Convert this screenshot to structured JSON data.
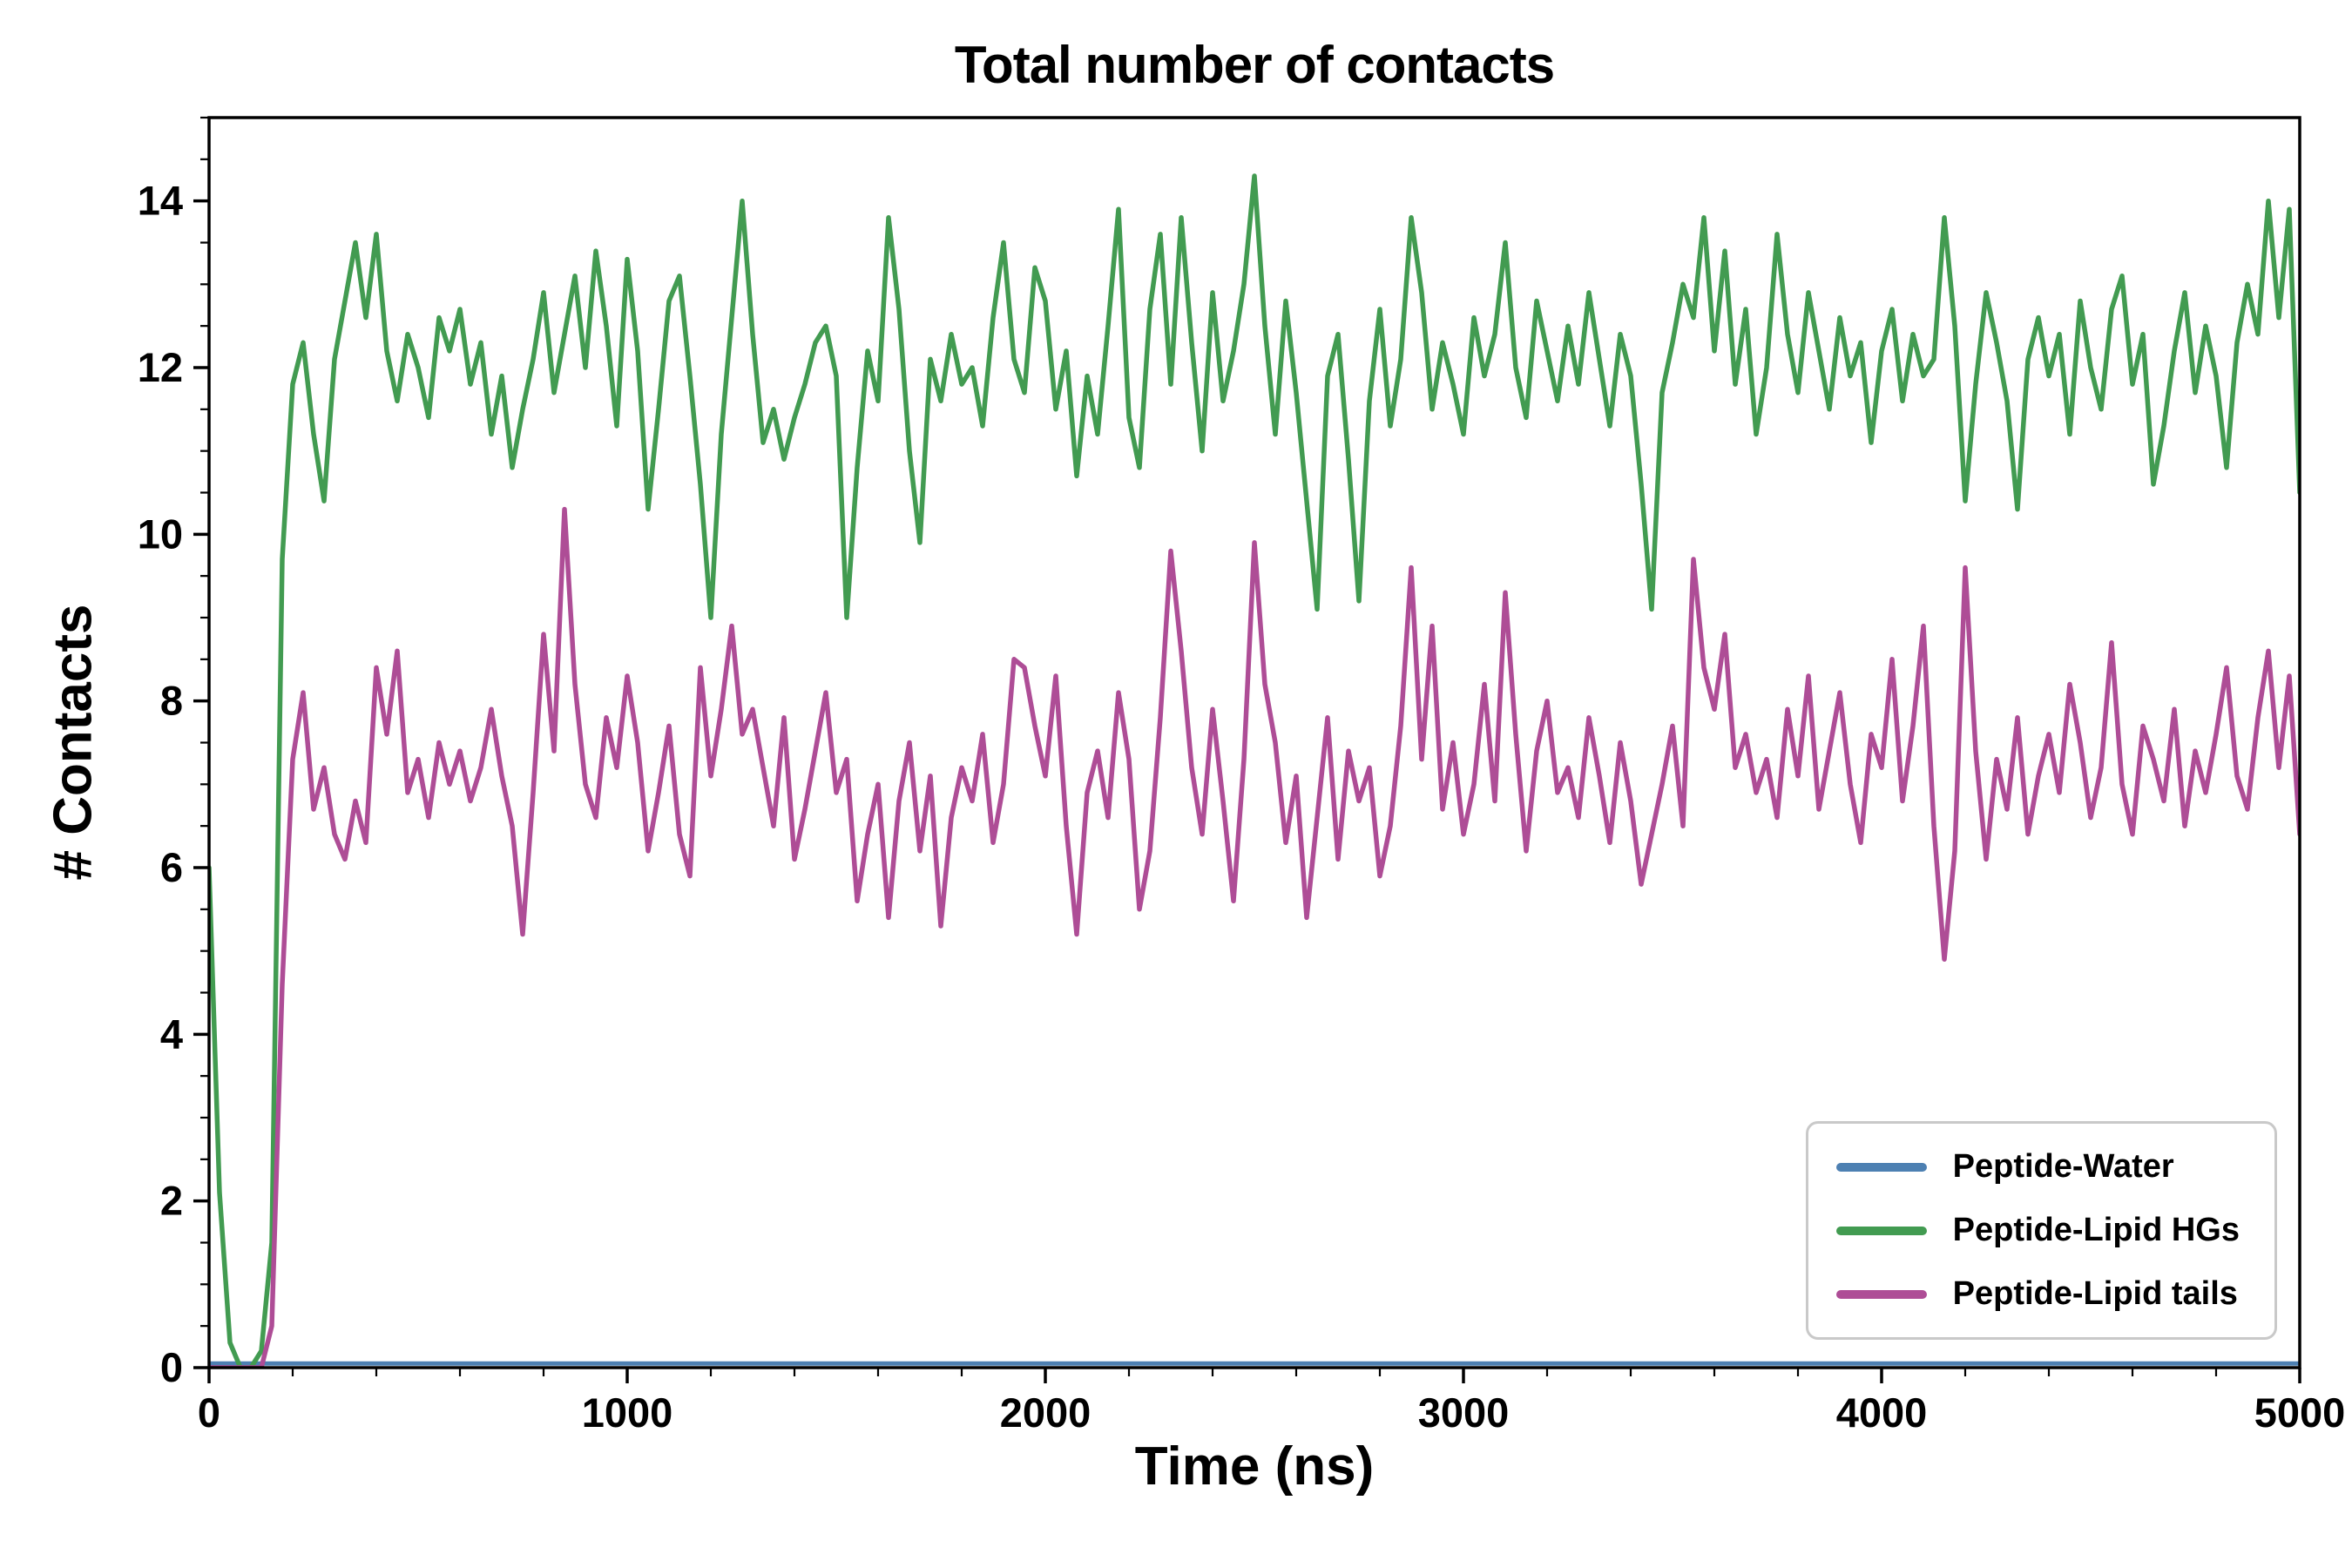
{
  "title": "Total number of contacts",
  "xlabel": "Time (ns)",
  "ylabel": "# Contacts",
  "legend": {
    "items": [
      {
        "label": "Peptide-Water",
        "color": "#4d80b2"
      },
      {
        "label": "Peptide-Lipid HGs",
        "color": "#429b51"
      },
      {
        "label": "Peptide-Lipid tails",
        "color": "#ae4d96"
      }
    ]
  },
  "chart_data": {
    "type": "line",
    "title": "Total number of contacts",
    "xlabel": "Time (ns)",
    "ylabel": "# Contacts",
    "xlim": [
      0,
      5000
    ],
    "ylim": [
      0,
      15
    ],
    "xticks": [
      0,
      1000,
      2000,
      3000,
      4000,
      5000
    ],
    "yticks": [
      0,
      2,
      4,
      6,
      8,
      10,
      12,
      14
    ],
    "x_minor_step": 200,
    "y_minor_step": 0.5,
    "grid": false,
    "legend_position": "lower right",
    "series": [
      {
        "name": "Peptide-Water",
        "color": "#4d80b2",
        "width": 5,
        "x": [
          0,
          5000
        ],
        "values": [
          0.05,
          0.05
        ]
      },
      {
        "name": "Peptide-Lipid HGs",
        "color": "#429b51",
        "width": 5.5,
        "x0": 0,
        "dx": 25,
        "values": [
          6.0,
          2.1,
          0.3,
          0.0,
          0.0,
          0.2,
          1.5,
          9.7,
          11.8,
          12.3,
          11.2,
          10.4,
          12.1,
          12.8,
          13.5,
          12.6,
          13.6,
          12.2,
          11.6,
          12.4,
          12.0,
          11.4,
          12.6,
          12.2,
          12.7,
          11.8,
          12.3,
          11.2,
          11.9,
          10.8,
          11.5,
          12.1,
          12.9,
          11.7,
          12.4,
          13.1,
          12.0,
          13.4,
          12.5,
          11.3,
          13.3,
          12.2,
          10.3,
          11.5,
          12.8,
          13.1,
          11.9,
          10.6,
          9.0,
          11.2,
          12.6,
          14.0,
          12.4,
          11.1,
          11.5,
          10.9,
          11.4,
          11.8,
          12.3,
          12.5,
          11.9,
          9.0,
          10.8,
          12.2,
          11.6,
          13.8,
          12.7,
          11.0,
          9.9,
          12.1,
          11.6,
          12.4,
          11.8,
          12.0,
          11.3,
          12.6,
          13.5,
          12.1,
          11.7,
          13.2,
          12.8,
          11.5,
          12.2,
          10.7,
          11.9,
          11.2,
          12.5,
          13.9,
          11.4,
          10.8,
          12.7,
          13.6,
          11.8,
          13.8,
          12.3,
          11.0,
          12.9,
          11.6,
          12.2,
          13.0,
          14.3,
          12.5,
          11.2,
          12.8,
          11.7,
          10.4,
          9.1,
          11.9,
          12.4,
          10.9,
          9.2,
          11.6,
          12.7,
          11.3,
          12.1,
          13.8,
          12.9,
          11.5,
          12.3,
          11.8,
          11.2,
          12.6,
          11.9,
          12.4,
          13.5,
          12.0,
          11.4,
          12.8,
          12.2,
          11.6,
          12.5,
          11.8,
          12.9,
          12.1,
          11.3,
          12.4,
          11.9,
          10.6,
          9.1,
          11.7,
          12.3,
          13.0,
          12.6,
          13.8,
          12.2,
          13.4,
          11.8,
          12.7,
          11.2,
          12.0,
          13.6,
          12.4,
          11.7,
          12.9,
          12.2,
          11.5,
          12.6,
          11.9,
          12.3,
          11.1,
          12.2,
          12.7,
          11.6,
          12.4,
          11.9,
          12.1,
          13.8,
          12.5,
          10.4,
          11.8,
          12.9,
          12.3,
          11.6,
          10.3,
          12.1,
          12.6,
          11.9,
          12.4,
          11.2,
          12.8,
          12.0,
          11.5,
          12.7,
          13.1,
          11.8,
          12.4,
          10.6,
          11.3,
          12.2,
          12.9,
          11.7,
          12.5,
          11.9,
          10.8,
          12.3,
          13.0,
          12.4,
          14.0,
          12.6,
          13.9,
          10.5
        ]
      },
      {
        "name": "Peptide-Lipid tails",
        "color": "#ae4d96",
        "width": 5.5,
        "x0": 0,
        "dx": 25,
        "values": [
          0.0,
          0.0,
          0.0,
          0.0,
          0.0,
          0.0,
          0.5,
          4.6,
          7.3,
          8.1,
          6.7,
          7.2,
          6.4,
          6.1,
          6.8,
          6.3,
          8.4,
          7.6,
          8.6,
          6.9,
          7.3,
          6.6,
          7.5,
          7.0,
          7.4,
          6.8,
          7.2,
          7.9,
          7.1,
          6.5,
          5.2,
          6.9,
          8.8,
          7.4,
          10.3,
          8.2,
          7.0,
          6.6,
          7.8,
          7.2,
          8.3,
          7.5,
          6.2,
          6.9,
          7.7,
          6.4,
          5.9,
          8.4,
          7.1,
          7.9,
          8.9,
          7.6,
          7.9,
          7.2,
          6.5,
          7.8,
          6.1,
          6.7,
          7.4,
          8.1,
          6.9,
          7.3,
          5.6,
          6.4,
          7.0,
          5.4,
          6.8,
          7.5,
          6.2,
          7.1,
          5.3,
          6.6,
          7.2,
          6.8,
          7.6,
          6.3,
          7.0,
          8.5,
          8.4,
          7.7,
          7.1,
          8.3,
          6.5,
          5.2,
          6.9,
          7.4,
          6.6,
          8.1,
          7.3,
          5.5,
          6.2,
          7.8,
          9.8,
          8.6,
          7.2,
          6.4,
          7.9,
          6.8,
          5.6,
          7.3,
          9.9,
          8.2,
          7.5,
          6.3,
          7.1,
          5.4,
          6.6,
          7.8,
          6.1,
          7.4,
          6.8,
          7.2,
          5.9,
          6.5,
          7.7,
          9.6,
          7.3,
          8.9,
          6.7,
          7.5,
          6.4,
          7.0,
          8.2,
          6.8,
          9.3,
          7.6,
          6.2,
          7.4,
          8.0,
          6.9,
          7.2,
          6.6,
          7.8,
          7.1,
          6.3,
          7.5,
          6.8,
          5.8,
          6.4,
          7.0,
          7.7,
          6.5,
          9.7,
          8.4,
          7.9,
          8.8,
          7.2,
          7.6,
          6.9,
          7.3,
          6.6,
          7.9,
          7.1,
          8.3,
          6.7,
          7.4,
          8.1,
          7.0,
          6.3,
          7.6,
          7.2,
          8.5,
          6.8,
          7.7,
          8.9,
          6.5,
          4.9,
          6.2,
          9.6,
          7.4,
          6.1,
          7.3,
          6.7,
          7.8,
          6.4,
          7.1,
          7.6,
          6.9,
          8.2,
          7.5,
          6.6,
          7.2,
          8.7,
          7.0,
          6.4,
          7.7,
          7.3,
          6.8,
          7.9,
          6.5,
          7.4,
          6.9,
          7.6,
          8.4,
          7.1,
          6.7,
          7.8,
          8.6,
          7.2,
          8.3,
          6.4
        ]
      }
    ]
  }
}
